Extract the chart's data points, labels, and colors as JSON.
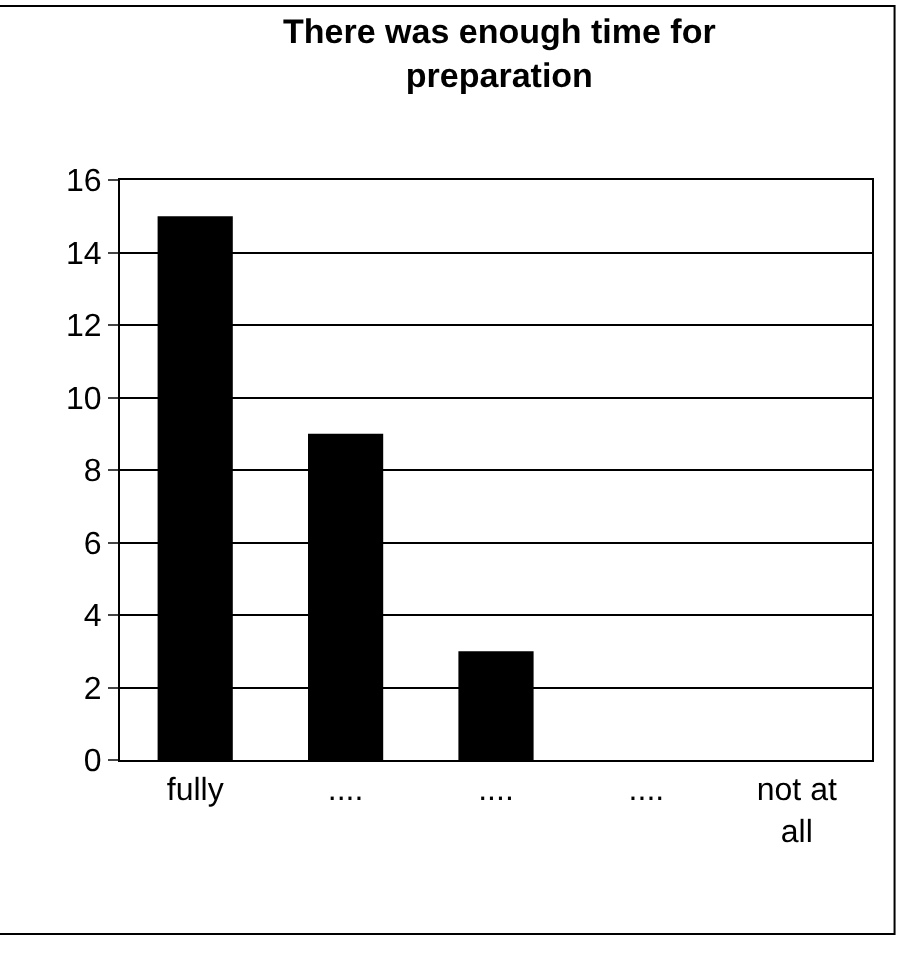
{
  "chart_data": {
    "type": "bar",
    "title": "There was enough time for preparation",
    "categories": [
      "fully",
      "....",
      "....",
      "....",
      "not at all"
    ],
    "values": [
      15,
      9,
      3,
      0,
      0
    ],
    "color": "#000000",
    "ylim": [
      0,
      16
    ],
    "yticks": [
      0,
      2,
      4,
      6,
      8,
      10,
      12,
      14,
      16
    ],
    "grid": "y"
  }
}
